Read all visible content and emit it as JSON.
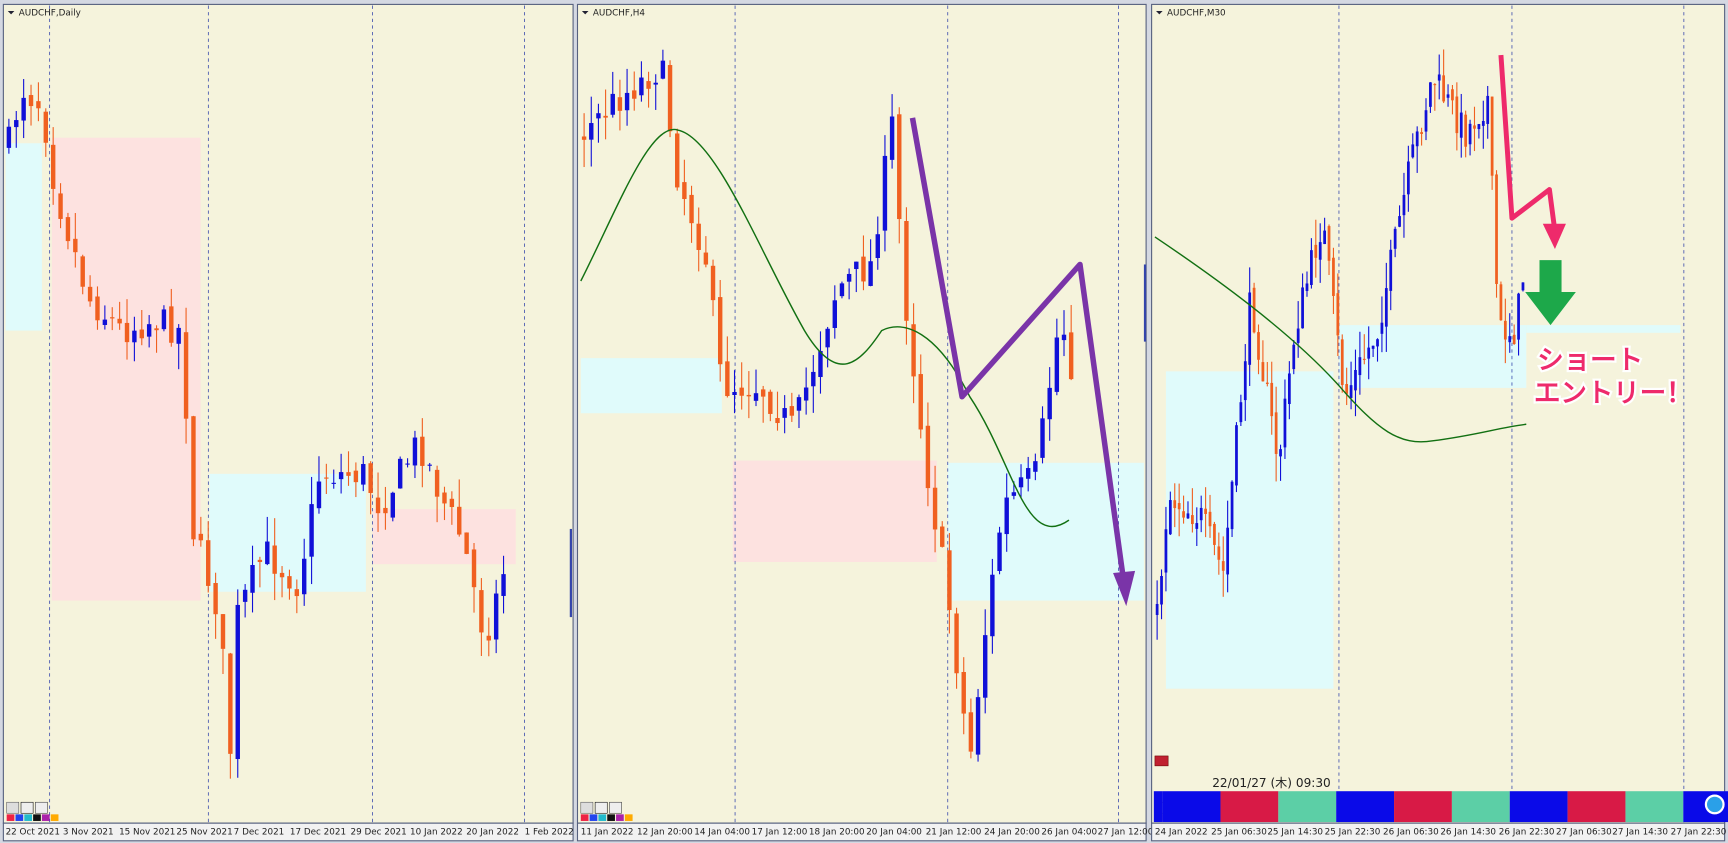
{
  "panels": [
    {
      "title": "AUDCHF,Daily",
      "dates": [
        "22 Oct 2021",
        "3 Nov 2021",
        "15 Nov 2021",
        "25 Nov 2021",
        "7 Dec 2021",
        "17 Dec 2021",
        "29 Dec 2021",
        "10 Jan 2022",
        "20 Jan 2022",
        "1 Feb 2022"
      ]
    },
    {
      "title": "AUDCHF,H4",
      "dates": [
        "11 Jan 2022",
        "12 Jan 20:00",
        "14 Jan 04:00",
        "17 Jan 12:00",
        "18 Jan 20:00",
        "20 Jan 04:00",
        "21 Jan 12:00",
        "24 Jan 20:00",
        "26 Jan 04:00",
        "27 Jan 12:00"
      ]
    },
    {
      "title": "AUDCHF,M30",
      "dates": [
        "24 Jan 2022",
        "25 Jan 06:30",
        "25 Jan 14:30",
        "25 Jan 22:30",
        "26 Jan 06:30",
        "26 Jan 14:30",
        "26 Jan 22:30",
        "27 Jan 06:30",
        "27 Jan 14:30",
        "27 Jan 22:30"
      ]
    }
  ],
  "annotation": {
    "lines": [
      "ショート",
      "エントリー！"
    ]
  },
  "timestamp": "22/01/27 (木) 09:30"
}
